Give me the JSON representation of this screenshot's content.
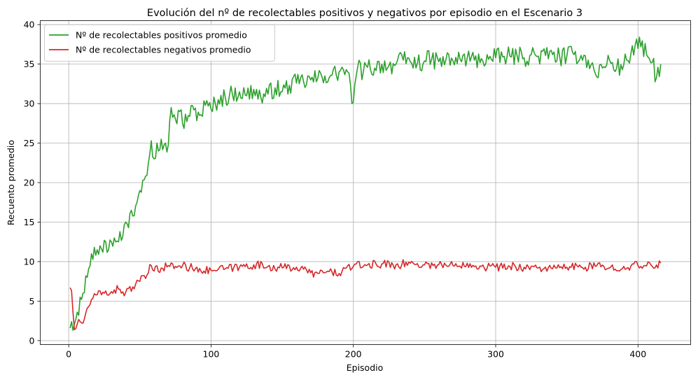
{
  "chart_data": {
    "type": "line",
    "title": "Evolución del nº de recolectables positivos y negativos por episodio en el Escenario 3",
    "xlabel": "Episodio",
    "ylabel": "Recuento promedio",
    "xlim": [
      -20,
      437
    ],
    "ylim": [
      -0.5,
      40.5
    ],
    "x_ticks": [
      0,
      100,
      200,
      300,
      400
    ],
    "y_ticks": [
      0,
      5,
      10,
      15,
      20,
      25,
      30,
      35,
      40
    ],
    "grid": true,
    "legend_position": "top-left",
    "x_start": 1,
    "x_end": 416,
    "series": [
      {
        "name": "Nº de recolectables positivos promedio",
        "color": "#2ca02c",
        "points": [
          [
            1,
            1.6
          ],
          [
            2,
            2.4
          ],
          [
            3,
            1.3
          ],
          [
            4,
            2.1
          ],
          [
            5,
            2.7
          ],
          [
            6,
            3.6
          ],
          [
            7,
            3.2
          ],
          [
            8,
            5.5
          ],
          [
            10,
            6
          ],
          [
            12,
            8.2
          ],
          [
            14,
            9.1
          ],
          [
            16,
            11
          ],
          [
            18,
            11.8
          ],
          [
            20,
            11.5
          ],
          [
            22,
            12
          ],
          [
            24,
            11.2
          ],
          [
            26,
            12.5
          ],
          [
            28,
            11.5
          ],
          [
            30,
            12.5
          ],
          [
            32,
            13
          ],
          [
            34,
            12.6
          ],
          [
            36,
            13.8
          ],
          [
            38,
            13.2
          ],
          [
            40,
            15
          ],
          [
            42,
            14.3
          ],
          [
            44,
            16.5
          ],
          [
            46,
            15.8
          ],
          [
            48,
            17.5
          ],
          [
            50,
            19
          ],
          [
            52,
            20.3
          ],
          [
            54,
            20.8
          ],
          [
            56,
            22.5
          ],
          [
            58,
            25.3
          ],
          [
            60,
            23
          ],
          [
            62,
            25
          ],
          [
            65,
            25.5
          ],
          [
            68,
            25
          ],
          [
            70,
            24.8
          ],
          [
            72,
            29.5
          ],
          [
            75,
            28
          ],
          [
            78,
            29
          ],
          [
            80,
            27.5
          ],
          [
            84,
            28.5
          ],
          [
            88,
            29.2
          ],
          [
            92,
            28.5
          ],
          [
            96,
            29.8
          ],
          [
            100,
            29.3
          ],
          [
            105,
            30.5
          ],
          [
            110,
            30.8
          ],
          [
            115,
            31.2
          ],
          [
            120,
            31.5
          ],
          [
            125,
            31
          ],
          [
            130,
            31.8
          ],
          [
            135,
            30.8
          ],
          [
            140,
            31.2
          ],
          [
            145,
            32
          ],
          [
            150,
            31.5
          ],
          [
            155,
            32.3
          ],
          [
            160,
            32.6
          ],
          [
            165,
            32.8
          ],
          [
            170,
            33
          ],
          [
            175,
            33.2
          ],
          [
            180,
            33.5
          ],
          [
            185,
            33.6
          ],
          [
            190,
            34
          ],
          [
            195,
            34.3
          ],
          [
            200,
            30.2
          ],
          [
            203,
            34.6
          ],
          [
            207,
            34
          ],
          [
            210,
            34.6
          ],
          [
            215,
            34.5
          ],
          [
            220,
            35
          ],
          [
            225,
            34.8
          ],
          [
            230,
            35
          ],
          [
            235,
            35.5
          ],
          [
            240,
            35.3
          ],
          [
            245,
            35.1
          ],
          [
            250,
            35.4
          ],
          [
            255,
            35.6
          ],
          [
            260,
            35.3
          ],
          [
            265,
            35.5
          ],
          [
            270,
            35.4
          ],
          [
            275,
            35.6
          ],
          [
            280,
            35.8
          ],
          [
            285,
            35.5
          ],
          [
            290,
            35.7
          ],
          [
            295,
            35.6
          ],
          [
            300,
            35.8
          ],
          [
            305,
            35.9
          ],
          [
            310,
            36
          ],
          [
            315,
            36.1
          ],
          [
            320,
            35.8
          ],
          [
            325,
            36.2
          ],
          [
            330,
            36
          ],
          [
            335,
            36.1
          ],
          [
            340,
            36.2
          ],
          [
            345,
            35.9
          ],
          [
            350,
            36
          ],
          [
            355,
            36.2
          ],
          [
            360,
            36.1
          ],
          [
            365,
            35.5
          ],
          [
            370,
            33.8
          ],
          [
            375,
            34.5
          ],
          [
            380,
            35.5
          ],
          [
            385,
            34.5
          ],
          [
            390,
            34.9
          ],
          [
            395,
            36.3
          ],
          [
            398,
            37.4
          ],
          [
            402,
            37.2
          ],
          [
            406,
            36.2
          ],
          [
            410,
            35.2
          ],
          [
            413,
            33.3
          ],
          [
            416,
            35
          ]
        ]
      },
      {
        "name": "Nº de recolectables negativos promedio",
        "color": "#d62728",
        "points": [
          [
            1,
            6.7
          ],
          [
            2,
            6.3
          ],
          [
            3,
            3.6
          ],
          [
            4,
            1.4
          ],
          [
            6,
            2.1
          ],
          [
            8,
            2.4
          ],
          [
            10,
            2.2
          ],
          [
            12,
            3.5
          ],
          [
            14,
            4.3
          ],
          [
            16,
            5.2
          ],
          [
            20,
            5.8
          ],
          [
            25,
            6
          ],
          [
            30,
            6.2
          ],
          [
            35,
            6.5
          ],
          [
            40,
            6.1
          ],
          [
            45,
            6.8
          ],
          [
            50,
            7.5
          ],
          [
            55,
            8.3
          ],
          [
            58,
            9.5
          ],
          [
            60,
            8.8
          ],
          [
            65,
            9.2
          ],
          [
            70,
            9.5
          ],
          [
            75,
            9.4
          ],
          [
            80,
            9.5
          ],
          [
            85,
            9.2
          ],
          [
            90,
            9.3
          ],
          [
            95,
            8.8
          ],
          [
            100,
            8.9
          ],
          [
            110,
            9.1
          ],
          [
            120,
            9.3
          ],
          [
            130,
            9.6
          ],
          [
            140,
            9.4
          ],
          [
            150,
            9.2
          ],
          [
            160,
            9.3
          ],
          [
            170,
            8.6
          ],
          [
            175,
            8.5
          ],
          [
            180,
            8.6
          ],
          [
            185,
            8.7
          ],
          [
            190,
            8.5
          ],
          [
            195,
            9.2
          ],
          [
            200,
            9.4
          ],
          [
            210,
            9.6
          ],
          [
            220,
            9.7
          ],
          [
            230,
            9.6
          ],
          [
            240,
            9.8
          ],
          [
            250,
            9.6
          ],
          [
            260,
            9.6
          ],
          [
            270,
            9.5
          ],
          [
            280,
            9.8
          ],
          [
            290,
            9.4
          ],
          [
            300,
            9.3
          ],
          [
            310,
            9.4
          ],
          [
            320,
            9.3
          ],
          [
            330,
            9.2
          ],
          [
            340,
            9.1
          ],
          [
            350,
            9.3
          ],
          [
            360,
            9.3
          ],
          [
            370,
            9.4
          ],
          [
            380,
            9.2
          ],
          [
            390,
            9.4
          ],
          [
            400,
            9.5
          ],
          [
            410,
            9.4
          ],
          [
            416,
            9.8
          ]
        ]
      }
    ]
  }
}
